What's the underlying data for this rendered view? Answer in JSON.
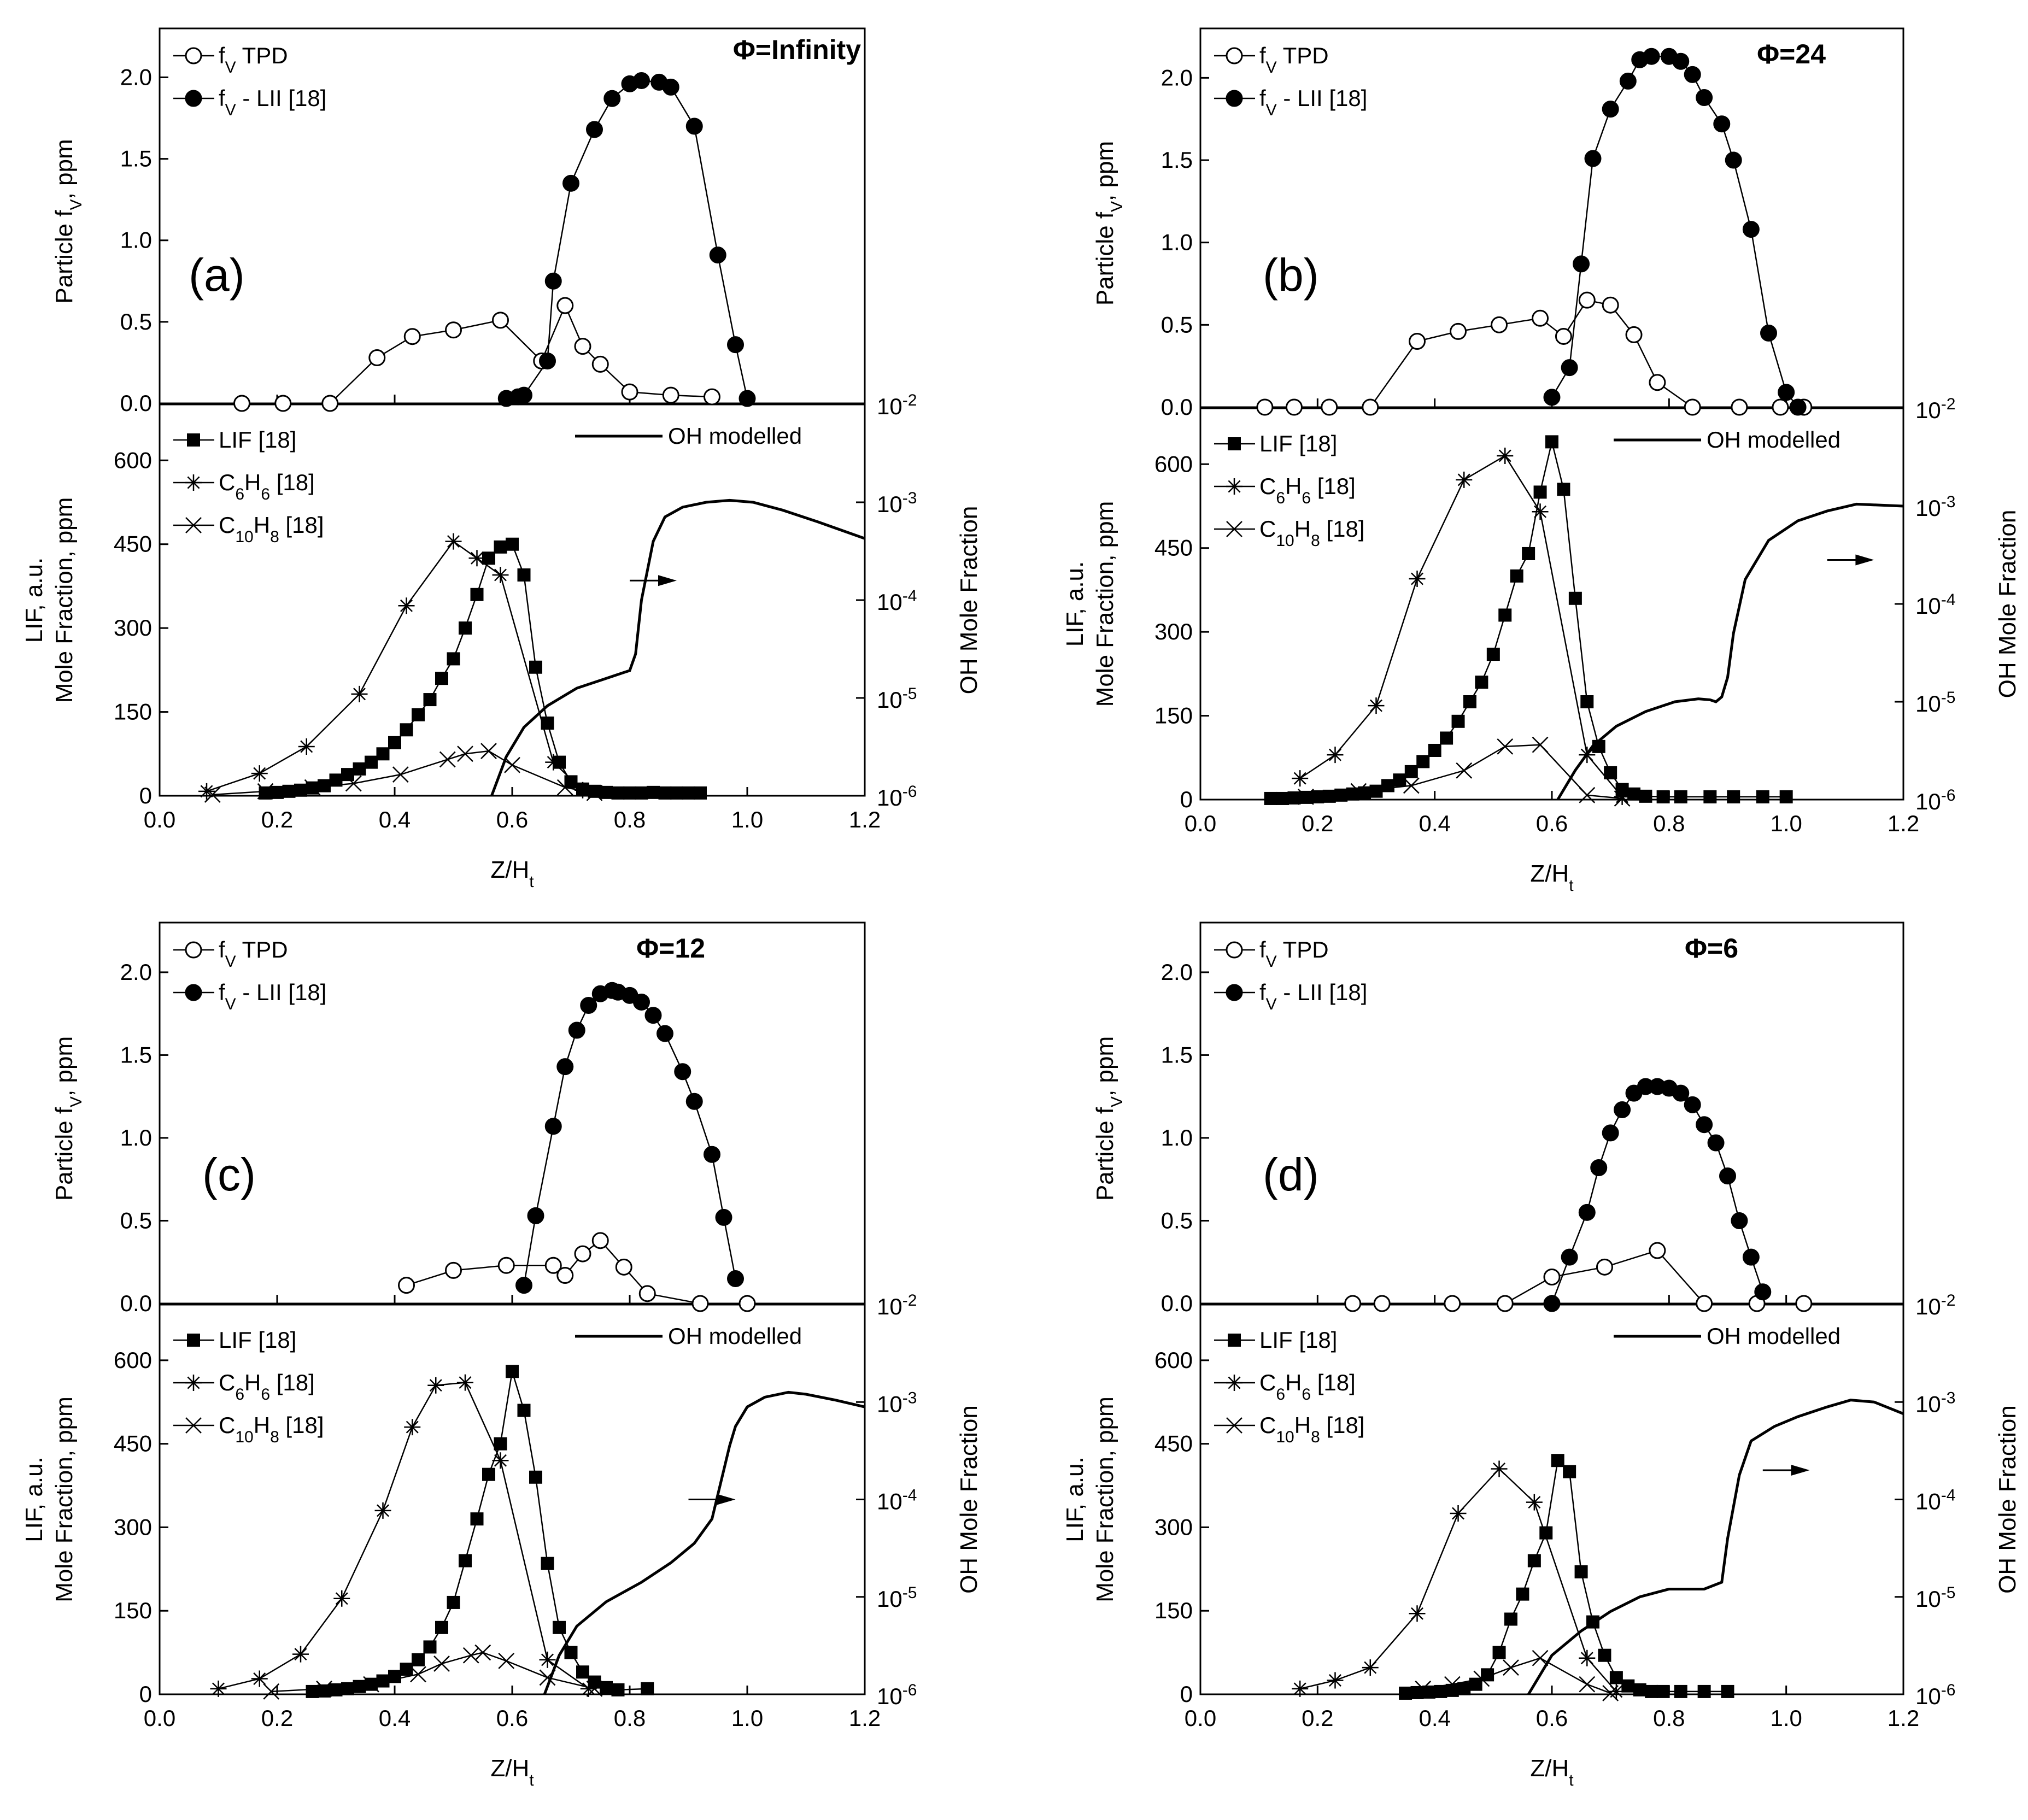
{
  "figure": {
    "x_axis_label": "Z/Ht",
    "x_axis_label_main": "Z/H",
    "x_axis_label_sub": "t",
    "top_y_axis_label": "Particle fv, ppm",
    "top_y_axis_label_main": "Particle f",
    "top_y_axis_label_sub": "V",
    "top_y_axis_label_tail": ", ppm",
    "bottom_y_axis_label_line1": "LIF, a.u.",
    "bottom_y_axis_label_line2": "Mole Fraction, ppm",
    "right_axis_label": "OH Mole Fraction",
    "legend": {
      "tpd": "fV TPD",
      "tpd_main": "f",
      "tpd_sub": "V",
      "tpd_tail": " TPD",
      "lii": "fV - LII [18]",
      "lii_main": "f",
      "lii_sub": "V",
      "lii_tail": " - LII [18]",
      "lif": "LIF [18]",
      "c6h6": "C6H6 [18]",
      "c10h8": "C10H8 [18]",
      "oh": "OH modelled"
    },
    "x_ticks": [
      "0.0",
      "0.2",
      "0.4",
      "0.6",
      "0.8",
      "1.0",
      "1.2"
    ],
    "top_y_ticks": [
      "0.0",
      "0.5",
      "1.0",
      "1.5",
      "2.0"
    ],
    "bottom_y_ticks": [
      "0",
      "150",
      "300",
      "450",
      "600"
    ],
    "right_ticks": [
      {
        "base": "10",
        "exp": "-6"
      },
      {
        "base": "10",
        "exp": "-5"
      },
      {
        "base": "10",
        "exp": "-4"
      },
      {
        "base": "10",
        "exp": "-3"
      },
      {
        "base": "10",
        "exp": "-2"
      }
    ],
    "colors": {
      "ink": "#000000",
      "background": "#ffffff"
    }
  },
  "chart_data": [
    {
      "type": "line",
      "panel": "(a)",
      "phi": "Φ=Infinity",
      "xlim": [
        0.0,
        1.2
      ],
      "top_ylim": [
        0.0,
        2.3
      ],
      "bottom_ylim": [
        0,
        700
      ],
      "right_ylim_log": [
        1e-06,
        0.01
      ],
      "arrow_x": [
        0.8,
        0.88
      ],
      "arrow_log": -3.8,
      "fv_tpd": {
        "x": [
          0.14,
          0.21,
          0.29,
          0.37,
          0.43,
          0.5,
          0.58,
          0.65,
          0.69,
          0.72,
          0.75,
          0.8,
          0.87,
          0.94
        ],
        "y": [
          0.0,
          0.0,
          0.0,
          0.28,
          0.41,
          0.45,
          0.51,
          0.26,
          0.6,
          0.35,
          0.24,
          0.07,
          0.05,
          0.04
        ]
      },
      "fv_lii": {
        "x": [
          0.59,
          0.61,
          0.62,
          0.66,
          0.67,
          0.7,
          0.74,
          0.77,
          0.8,
          0.82,
          0.85,
          0.87,
          0.91,
          0.95,
          0.98,
          1.0
        ],
        "y": [
          0.03,
          0.04,
          0.05,
          0.26,
          0.75,
          1.35,
          1.68,
          1.87,
          1.96,
          1.98,
          1.97,
          1.94,
          1.7,
          0.91,
          0.36,
          0.03
        ]
      },
      "lif": {
        "x": [
          0.18,
          0.2,
          0.22,
          0.24,
          0.26,
          0.28,
          0.3,
          0.32,
          0.34,
          0.36,
          0.38,
          0.4,
          0.42,
          0.44,
          0.46,
          0.48,
          0.5,
          0.52,
          0.54,
          0.56,
          0.58,
          0.6,
          0.62,
          0.64,
          0.66,
          0.68,
          0.7,
          0.72,
          0.74,
          0.76,
          0.78,
          0.8,
          0.82,
          0.84,
          0.86,
          0.88,
          0.9,
          0.92
        ],
        "y": [
          5,
          6,
          8,
          10,
          14,
          18,
          28,
          38,
          48,
          60,
          75,
          95,
          118,
          145,
          172,
          210,
          245,
          300,
          360,
          425,
          445,
          450,
          395,
          230,
          130,
          60,
          25,
          12,
          8,
          6,
          5,
          5,
          5,
          6,
          5,
          5,
          5,
          5
        ]
      },
      "c6h6": {
        "x": [
          0.08,
          0.17,
          0.25,
          0.34,
          0.42,
          0.5,
          0.54,
          0.58,
          0.67,
          0.72
        ],
        "y": [
          8,
          40,
          88,
          182,
          340,
          455,
          425,
          395,
          60,
          10
        ]
      },
      "c10h8": {
        "x": [
          0.09,
          0.18,
          0.26,
          0.33,
          0.41,
          0.49,
          0.52,
          0.56,
          0.6,
          0.69,
          0.74
        ],
        "y": [
          2,
          8,
          15,
          22,
          38,
          65,
          75,
          80,
          55,
          15,
          5
        ]
      },
      "oh": {
        "x": [
          0.565,
          0.59,
          0.62,
          0.66,
          0.71,
          0.76,
          0.8,
          0.81,
          0.82,
          0.84,
          0.86,
          0.89,
          0.93,
          0.97,
          1.01,
          1.06,
          1.12,
          1.2
        ],
        "log10": [
          -6.0,
          -5.6,
          -5.3,
          -5.08,
          -4.9,
          -4.8,
          -4.72,
          -4.55,
          -4.0,
          -3.4,
          -3.15,
          -3.05,
          -3.0,
          -2.98,
          -3.0,
          -3.08,
          -3.2,
          -3.37
        ]
      }
    },
    {
      "type": "line",
      "panel": "(b)",
      "phi": "Φ=24",
      "xlim": [
        0.0,
        1.2
      ],
      "top_ylim": [
        0.0,
        2.3
      ],
      "bottom_ylim": [
        0,
        700
      ],
      "right_ylim_log": [
        1e-06,
        0.01
      ],
      "arrow_x": [
        1.07,
        1.15
      ],
      "arrow_log": -3.55,
      "fv_tpd": {
        "x": [
          0.11,
          0.16,
          0.22,
          0.29,
          0.37,
          0.44,
          0.51,
          0.58,
          0.62,
          0.66,
          0.7,
          0.74,
          0.78,
          0.84,
          0.92,
          0.99,
          1.03
        ],
        "y": [
          0.0,
          0.0,
          0.0,
          0.0,
          0.4,
          0.46,
          0.5,
          0.54,
          0.43,
          0.65,
          0.62,
          0.44,
          0.15,
          0.0,
          0.0,
          0.0,
          0.0
        ]
      },
      "fv_lii": {
        "x": [
          0.6,
          0.63,
          0.65,
          0.67,
          0.7,
          0.73,
          0.75,
          0.77,
          0.8,
          0.82,
          0.84,
          0.86,
          0.89,
          0.91,
          0.94,
          0.97,
          1.0,
          1.02
        ],
        "y": [
          0.06,
          0.24,
          0.87,
          1.51,
          1.81,
          1.98,
          2.11,
          2.13,
          2.13,
          2.1,
          2.02,
          1.88,
          1.72,
          1.5,
          1.08,
          0.45,
          0.09,
          0.0
        ]
      },
      "lif": {
        "x": [
          0.12,
          0.14,
          0.16,
          0.18,
          0.2,
          0.22,
          0.24,
          0.26,
          0.28,
          0.3,
          0.32,
          0.34,
          0.36,
          0.38,
          0.4,
          0.42,
          0.44,
          0.46,
          0.48,
          0.5,
          0.52,
          0.54,
          0.56,
          0.58,
          0.6,
          0.62,
          0.64,
          0.66,
          0.68,
          0.7,
          0.72,
          0.74,
          0.76,
          0.79,
          0.82,
          0.87,
          0.91,
          0.96,
          1.0
        ],
        "y": [
          2,
          2,
          3,
          4,
          5,
          6,
          8,
          10,
          12,
          15,
          25,
          35,
          50,
          68,
          88,
          110,
          140,
          175,
          210,
          260,
          330,
          400,
          440,
          550,
          640,
          555,
          360,
          175,
          95,
          48,
          18,
          10,
          6,
          5,
          5,
          5,
          5,
          5,
          5
        ]
      },
      "c6h6": {
        "x": [
          0.17,
          0.23,
          0.3,
          0.37,
          0.45,
          0.52,
          0.58,
          0.66,
          0.72
        ],
        "y": [
          38,
          80,
          168,
          395,
          572,
          615,
          515,
          80,
          5
        ]
      },
      "c10h8": {
        "x": [
          0.18,
          0.27,
          0.36,
          0.45,
          0.52,
          0.58,
          0.66,
          0.72
        ],
        "y": [
          5,
          15,
          25,
          52,
          95,
          98,
          8,
          2
        ]
      },
      "oh": {
        "x": [
          0.61,
          0.64,
          0.67,
          0.71,
          0.76,
          0.81,
          0.85,
          0.87,
          0.88,
          0.89,
          0.9,
          0.91,
          0.93,
          0.97,
          1.02,
          1.07,
          1.12,
          1.2
        ],
        "log10": [
          -6.0,
          -5.7,
          -5.45,
          -5.25,
          -5.1,
          -5.0,
          -4.97,
          -4.98,
          -5.0,
          -4.95,
          -4.75,
          -4.3,
          -3.75,
          -3.35,
          -3.15,
          -3.05,
          -2.98,
          -3.0
        ]
      }
    },
    {
      "type": "line",
      "panel": "(c)",
      "phi": "Φ=12",
      "xlim": [
        0.0,
        1.2
      ],
      "top_ylim": [
        0.0,
        2.3
      ],
      "bottom_ylim": [
        0,
        700
      ],
      "right_ylim_log": [
        1e-06,
        0.01
      ],
      "arrow_x": [
        0.9,
        0.98
      ],
      "arrow_log": -4.0,
      "fv_tpd": {
        "x": [
          0.42,
          0.5,
          0.59,
          0.67,
          0.69,
          0.72,
          0.75,
          0.79,
          0.83,
          0.92,
          1.0
        ],
        "y": [
          0.11,
          0.2,
          0.23,
          0.23,
          0.17,
          0.3,
          0.38,
          0.22,
          0.06,
          0.0,
          0.0
        ]
      },
      "fv_lii": {
        "x": [
          0.62,
          0.64,
          0.67,
          0.69,
          0.71,
          0.73,
          0.75,
          0.77,
          0.78,
          0.8,
          0.82,
          0.84,
          0.86,
          0.89,
          0.91,
          0.94,
          0.96,
          0.98
        ],
        "y": [
          0.11,
          0.53,
          1.07,
          1.43,
          1.65,
          1.8,
          1.87,
          1.89,
          1.88,
          1.86,
          1.82,
          1.74,
          1.63,
          1.4,
          1.22,
          0.9,
          0.52,
          0.15
        ]
      },
      "lif": {
        "x": [
          0.26,
          0.28,
          0.3,
          0.32,
          0.34,
          0.36,
          0.38,
          0.4,
          0.42,
          0.44,
          0.46,
          0.48,
          0.5,
          0.52,
          0.54,
          0.56,
          0.58,
          0.6,
          0.62,
          0.64,
          0.66,
          0.68,
          0.7,
          0.72,
          0.74,
          0.76,
          0.78,
          0.83
        ],
        "y": [
          5,
          6,
          8,
          10,
          14,
          18,
          24,
          32,
          45,
          62,
          85,
          120,
          165,
          240,
          315,
          395,
          450,
          580,
          510,
          390,
          235,
          120,
          75,
          40,
          22,
          12,
          8,
          10
        ]
      },
      "c6h6": {
        "x": [
          0.1,
          0.17,
          0.24,
          0.31,
          0.38,
          0.43,
          0.47,
          0.52,
          0.58,
          0.66,
          0.73
        ],
        "y": [
          10,
          28,
          72,
          172,
          330,
          480,
          555,
          560,
          420,
          62,
          10
        ]
      },
      "c10h8": {
        "x": [
          0.19,
          0.28,
          0.36,
          0.44,
          0.48,
          0.53,
          0.55,
          0.59,
          0.66,
          0.74
        ],
        "y": [
          5,
          10,
          18,
          36,
          55,
          70,
          75,
          60,
          30,
          10
        ]
      },
      "oh": {
        "x": [
          0.655,
          0.68,
          0.71,
          0.76,
          0.82,
          0.87,
          0.91,
          0.94,
          0.95,
          0.96,
          0.97,
          0.98,
          1.0,
          1.03,
          1.07,
          1.1,
          1.15,
          1.2
        ],
        "log10": [
          -6.0,
          -5.6,
          -5.3,
          -5.05,
          -4.85,
          -4.65,
          -4.45,
          -4.2,
          -3.95,
          -3.7,
          -3.45,
          -3.25,
          -3.05,
          -2.95,
          -2.9,
          -2.92,
          -2.98,
          -3.05
        ]
      }
    },
    {
      "type": "line",
      "panel": "(d)",
      "phi": "Φ=6",
      "xlim": [
        0.0,
        1.2
      ],
      "top_ylim": [
        0.0,
        2.3
      ],
      "bottom_ylim": [
        0,
        700
      ],
      "right_ylim_log": [
        1e-06,
        0.01
      ],
      "arrow_x": [
        0.96,
        1.04
      ],
      "arrow_log": -3.7,
      "fv_tpd": {
        "x": [
          0.26,
          0.31,
          0.43,
          0.52,
          0.6,
          0.69,
          0.78,
          0.86,
          0.95,
          1.03
        ],
        "y": [
          0.0,
          0.0,
          0.0,
          0.0,
          0.16,
          0.22,
          0.32,
          0.0,
          0.0,
          0.0
        ]
      },
      "fv_lii": {
        "x": [
          0.6,
          0.63,
          0.66,
          0.68,
          0.7,
          0.72,
          0.74,
          0.76,
          0.78,
          0.8,
          0.82,
          0.84,
          0.86,
          0.88,
          0.9,
          0.92,
          0.94,
          0.96
        ],
        "y": [
          0.0,
          0.28,
          0.55,
          0.82,
          1.03,
          1.17,
          1.27,
          1.31,
          1.31,
          1.3,
          1.27,
          1.2,
          1.08,
          0.97,
          0.77,
          0.5,
          0.28,
          0.07
        ]
      },
      "lif": {
        "x": [
          0.35,
          0.37,
          0.39,
          0.41,
          0.43,
          0.45,
          0.47,
          0.49,
          0.51,
          0.53,
          0.55,
          0.57,
          0.59,
          0.61,
          0.63,
          0.65,
          0.67,
          0.69,
          0.71,
          0.73,
          0.75,
          0.77,
          0.79,
          0.82,
          0.86,
          0.9
        ],
        "y": [
          2,
          3,
          4,
          5,
          7,
          10,
          18,
          35,
          75,
          135,
          180,
          240,
          290,
          420,
          400,
          220,
          130,
          70,
          30,
          15,
          8,
          5,
          5,
          5,
          5,
          5
        ]
      },
      "c6h6": {
        "x": [
          0.17,
          0.23,
          0.29,
          0.37,
          0.44,
          0.51,
          0.57,
          0.66,
          0.71
        ],
        "y": [
          10,
          25,
          48,
          145,
          325,
          405,
          345,
          65,
          5
        ]
      },
      "c10h8": {
        "x": [
          0.38,
          0.43,
          0.48,
          0.53,
          0.58,
          0.66,
          0.7
        ],
        "y": [
          10,
          18,
          28,
          48,
          65,
          18,
          2
        ]
      },
      "oh": {
        "x": [
          0.56,
          0.6,
          0.65,
          0.7,
          0.75,
          0.8,
          0.86,
          0.89,
          0.9,
          0.92,
          0.94,
          0.98,
          1.02,
          1.07,
          1.11,
          1.15,
          1.2
        ],
        "log10": [
          -6.0,
          -5.6,
          -5.35,
          -5.15,
          -5.0,
          -4.92,
          -4.92,
          -4.85,
          -4.4,
          -3.75,
          -3.4,
          -3.25,
          -3.15,
          -3.05,
          -2.98,
          -3.0,
          -3.12
        ]
      }
    }
  ]
}
